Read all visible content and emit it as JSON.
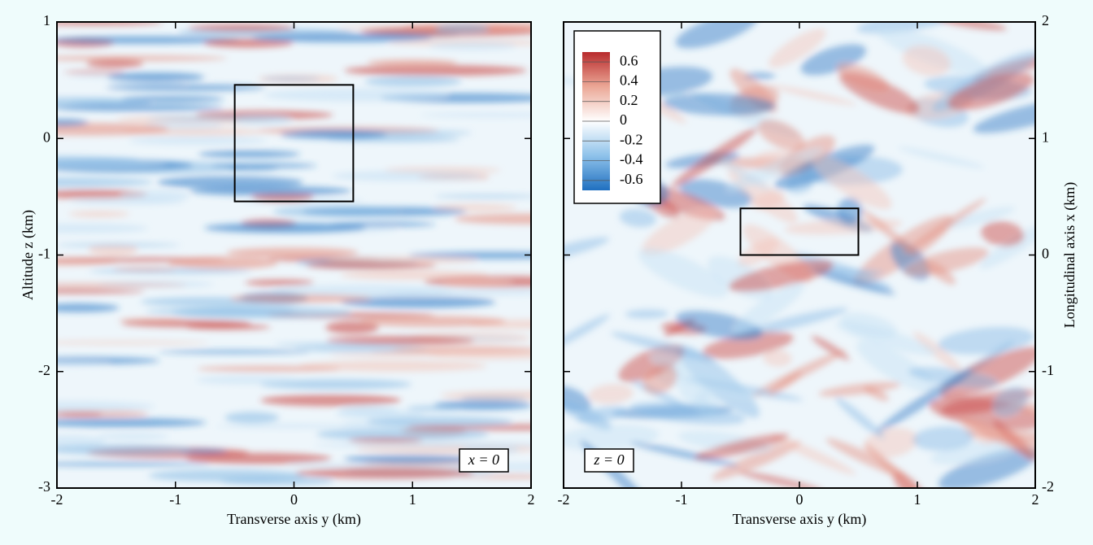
{
  "chart_data": [
    {
      "type": "heatmap",
      "xlabel": "Transverse axis y (km)",
      "ylabel": "Altitude z (km)",
      "xlim": [
        -2,
        2
      ],
      "ylim": [
        -3,
        1
      ],
      "xticks": [
        -2,
        -1,
        0,
        1,
        2
      ],
      "yticks": [
        -3,
        -2,
        -1,
        0,
        1
      ],
      "annotation": "x = 0",
      "box": {
        "x": [
          -0.5,
          0.5
        ],
        "y": [
          -0.54,
          0.46
        ]
      },
      "streak": "horizontal"
    },
    {
      "type": "heatmap",
      "xlabel": "Transverse axis y (km)",
      "ylabel": "Longitudinal axis x (km)",
      "xlim": [
        -2,
        2
      ],
      "y2lim": [
        -2,
        2
      ],
      "xticks": [
        -2,
        -1,
        0,
        1,
        2
      ],
      "y2ticks": [
        -2,
        -1,
        0,
        1,
        2
      ],
      "annotation": "z = 0",
      "box": {
        "x": [
          -0.5,
          0.5
        ],
        "y": [
          0,
          0.4
        ]
      },
      "streak": "swirl",
      "colorbar": {
        "lim": [
          -0.7,
          0.7
        ],
        "ticks": [
          0.6,
          0.4,
          0.2,
          0,
          -0.2,
          -0.4,
          -0.6
        ],
        "colors": [
          "#1f6fc0",
          "#8ec2ea",
          "#ffffff",
          "#eba796",
          "#b82a2c"
        ]
      }
    }
  ]
}
